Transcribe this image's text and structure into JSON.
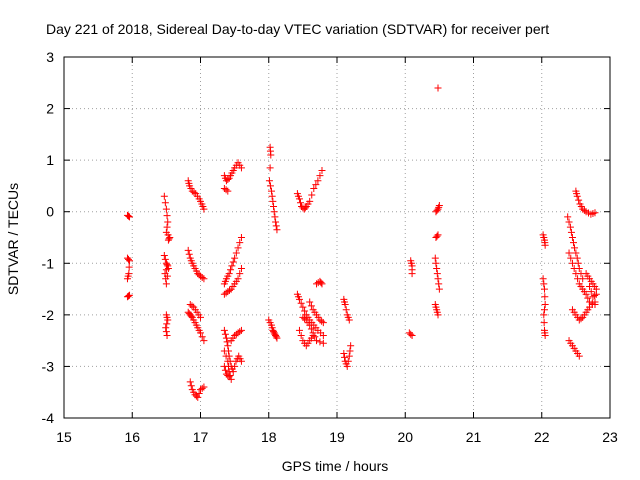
{
  "chart_data": {
    "type": "scatter",
    "title": "Day 221 of 2018, Sidereal Day-to-day VTEC variation (SDTVAR) for receiver pert",
    "xlabel": "GPS time / hours",
    "ylabel": "SDTVAR / TECUs",
    "xlim": [
      15,
      23
    ],
    "ylim": [
      -4,
      3
    ],
    "xticks": [
      "15",
      "16",
      "17",
      "18",
      "19",
      "20",
      "21",
      "22",
      "23"
    ],
    "yticks": [
      "3",
      "2",
      "1",
      "0",
      "-1",
      "-2",
      "-3",
      "-4"
    ],
    "grid": true,
    "marker": "+",
    "color": "#ff0000",
    "series": [
      {
        "name": "SDTVAR",
        "segments": [
          [
            [
              15.93,
              -0.07
            ],
            [
              15.96,
              -0.1
            ]
          ],
          [
            [
              15.93,
              -0.9
            ],
            [
              15.96,
              -0.95
            ],
            [
              15.95,
              -1.2
            ],
            [
              15.93,
              -1.3
            ]
          ],
          [
            [
              15.93,
              -1.65
            ],
            [
              15.96,
              -1.62
            ]
          ],
          [
            [
              16.47,
              0.3
            ],
            [
              16.5,
              0.05
            ],
            [
              16.52,
              -0.2
            ],
            [
              16.5,
              -0.4
            ],
            [
              16.55,
              -0.5
            ],
            [
              16.53,
              -0.55
            ]
          ],
          [
            [
              16.47,
              -0.85
            ],
            [
              16.5,
              -1.0
            ],
            [
              16.52,
              -1.05
            ],
            [
              16.48,
              -1.2
            ],
            [
              16.5,
              -1.4
            ],
            [
              16.53,
              -1.1
            ]
          ],
          [
            [
              16.5,
              -2.0
            ],
            [
              16.52,
              -2.1
            ],
            [
              16.49,
              -2.25
            ],
            [
              16.51,
              -2.4
            ]
          ],
          [
            [
              16.82,
              0.6
            ],
            [
              16.84,
              0.5
            ],
            [
              16.88,
              0.4
            ],
            [
              16.93,
              0.35
            ],
            [
              16.98,
              0.25
            ],
            [
              17.02,
              0.15
            ],
            [
              17.05,
              0.05
            ]
          ],
          [
            [
              16.82,
              -0.75
            ],
            [
              16.85,
              -0.9
            ],
            [
              16.88,
              -1.0
            ],
            [
              16.92,
              -1.1
            ],
            [
              16.96,
              -1.2
            ],
            [
              17.0,
              -1.25
            ],
            [
              17.05,
              -1.3
            ]
          ],
          [
            [
              16.82,
              -1.95
            ],
            [
              16.85,
              -2.0
            ],
            [
              16.88,
              -2.05
            ],
            [
              16.92,
              -2.15
            ],
            [
              16.96,
              -2.25
            ],
            [
              17.0,
              -2.35
            ],
            [
              17.05,
              -2.5
            ]
          ],
          [
            [
              16.85,
              -1.8
            ],
            [
              16.9,
              -1.85
            ],
            [
              16.95,
              -1.95
            ],
            [
              17.0,
              -2.05
            ]
          ],
          [
            [
              16.85,
              -3.3
            ],
            [
              16.88,
              -3.45
            ],
            [
              16.92,
              -3.55
            ],
            [
              16.96,
              -3.6
            ],
            [
              17.0,
              -3.45
            ],
            [
              17.05,
              -3.4
            ]
          ],
          [
            [
              17.35,
              0.7
            ],
            [
              17.38,
              0.6
            ],
            [
              17.42,
              0.65
            ],
            [
              17.46,
              0.75
            ],
            [
              17.5,
              0.85
            ],
            [
              17.55,
              0.95
            ],
            [
              17.6,
              0.85
            ]
          ],
          [
            [
              17.35,
              0.45
            ],
            [
              17.4,
              0.4
            ]
          ],
          [
            [
              17.35,
              -1.4
            ],
            [
              17.38,
              -1.3
            ],
            [
              17.42,
              -1.2
            ],
            [
              17.46,
              -1.05
            ],
            [
              17.5,
              -0.9
            ],
            [
              17.55,
              -0.7
            ],
            [
              17.6,
              -0.5
            ]
          ],
          [
            [
              17.35,
              -1.6
            ],
            [
              17.4,
              -1.55
            ],
            [
              17.45,
              -1.5
            ],
            [
              17.5,
              -1.4
            ],
            [
              17.55,
              -1.3
            ],
            [
              17.6,
              -1.1
            ]
          ],
          [
            [
              17.35,
              -2.3
            ],
            [
              17.38,
              -2.45
            ],
            [
              17.4,
              -2.6
            ],
            [
              17.42,
              -2.8
            ],
            [
              17.45,
              -3.0
            ],
            [
              17.48,
              -3.1
            ],
            [
              17.52,
              -2.9
            ],
            [
              17.56,
              -2.8
            ],
            [
              17.6,
              -2.9
            ]
          ],
          [
            [
              17.35,
              -2.7
            ],
            [
              17.4,
              -2.9
            ],
            [
              17.42,
              -3.1
            ],
            [
              17.45,
              -3.25
            ]
          ],
          [
            [
              17.45,
              -2.5
            ],
            [
              17.5,
              -2.4
            ],
            [
              17.55,
              -2.35
            ],
            [
              17.6,
              -2.3
            ]
          ],
          [
            [
              17.35,
              -3.0
            ],
            [
              17.38,
              -3.15
            ],
            [
              17.42,
              -3.2
            ]
          ],
          [
            [
              18.02,
              1.25
            ],
            [
              18.03,
              1.1
            ],
            [
              18.01,
              0.6
            ],
            [
              18.04,
              0.4
            ],
            [
              18.06,
              0.2
            ],
            [
              18.08,
              0.0
            ],
            [
              18.1,
              -0.2
            ],
            [
              18.12,
              -0.35
            ]
          ],
          [
            [
              18.0,
              -2.1
            ],
            [
              18.04,
              -2.2
            ],
            [
              18.06,
              -2.3
            ],
            [
              18.08,
              -2.35
            ],
            [
              18.1,
              -2.4
            ],
            [
              18.12,
              -2.45
            ]
          ],
          [
            [
              18.42,
              0.35
            ],
            [
              18.45,
              0.25
            ],
            [
              18.48,
              0.1
            ],
            [
              18.52,
              0.05
            ],
            [
              18.55,
              0.1
            ],
            [
              18.6,
              0.2
            ],
            [
              18.66,
              0.45
            ],
            [
              18.72,
              0.6
            ],
            [
              18.78,
              0.8
            ]
          ],
          [
            [
              18.42,
              -1.6
            ],
            [
              18.45,
              -1.7
            ],
            [
              18.5,
              -1.85
            ],
            [
              18.55,
              -2.0
            ],
            [
              18.6,
              -2.1
            ],
            [
              18.66,
              -2.2
            ],
            [
              18.72,
              -2.3
            ],
            [
              18.8,
              -2.4
            ]
          ],
          [
            [
              18.45,
              -2.3
            ],
            [
              18.5,
              -2.5
            ],
            [
              18.55,
              -2.6
            ],
            [
              18.6,
              -2.5
            ],
            [
              18.65,
              -2.4
            ]
          ],
          [
            [
              18.6,
              -1.75
            ],
            [
              18.65,
              -1.9
            ],
            [
              18.7,
              -2.0
            ],
            [
              18.75,
              -2.1
            ],
            [
              18.8,
              -2.15
            ]
          ],
          [
            [
              18.7,
              -1.4
            ],
            [
              18.75,
              -1.35
            ],
            [
              18.78,
              -1.4
            ]
          ],
          [
            [
              18.5,
              -2.05
            ],
            [
              18.55,
              -2.1
            ],
            [
              18.6,
              -2.2
            ],
            [
              18.65,
              -2.35
            ],
            [
              18.7,
              -2.5
            ],
            [
              18.8,
              -2.55
            ]
          ],
          [
            [
              19.1,
              -1.7
            ],
            [
              19.12,
              -1.8
            ],
            [
              19.15,
              -2.0
            ],
            [
              19.18,
              -2.1
            ]
          ],
          [
            [
              19.1,
              -2.75
            ],
            [
              19.12,
              -2.9
            ],
            [
              19.15,
              -3.0
            ],
            [
              19.18,
              -2.8
            ],
            [
              19.2,
              -2.6
            ]
          ],
          [
            [
              20.08,
              -0.95
            ],
            [
              20.1,
              -1.05
            ],
            [
              20.1,
              -1.2
            ]
          ],
          [
            [
              20.06,
              -2.35
            ],
            [
              20.1,
              -2.4
            ]
          ],
          [
            [
              20.48,
              2.4
            ]
          ],
          [
            [
              20.45,
              0.0
            ],
            [
              20.48,
              0.05
            ],
            [
              20.5,
              0.12
            ]
          ],
          [
            [
              20.45,
              -0.5
            ],
            [
              20.48,
              -0.45
            ]
          ],
          [
            [
              20.44,
              -0.9
            ],
            [
              20.46,
              -1.1
            ],
            [
              20.48,
              -1.3
            ],
            [
              20.5,
              -1.5
            ]
          ],
          [
            [
              20.44,
              -1.8
            ],
            [
              20.46,
              -1.9
            ],
            [
              20.48,
              -2.0
            ]
          ],
          [
            [
              22.02,
              -0.45
            ],
            [
              22.04,
              -0.55
            ],
            [
              22.05,
              -0.65
            ]
          ],
          [
            [
              22.02,
              -1.3
            ],
            [
              22.04,
              -1.5
            ],
            [
              22.05,
              -1.8
            ],
            [
              22.03,
              -2.0
            ],
            [
              22.04,
              -2.3
            ],
            [
              22.05,
              -2.4
            ]
          ],
          [
            [
              22.38,
              -0.1
            ],
            [
              22.42,
              -0.3
            ],
            [
              22.45,
              -0.5
            ],
            [
              22.48,
              -0.7
            ],
            [
              22.52,
              -0.9
            ],
            [
              22.55,
              -1.1
            ],
            [
              22.6,
              -1.3
            ]
          ],
          [
            [
              22.5,
              0.4
            ],
            [
              22.52,
              0.3
            ],
            [
              22.56,
              0.15
            ],
            [
              22.6,
              0.05
            ],
            [
              22.65,
              0.0
            ],
            [
              22.72,
              -0.05
            ],
            [
              22.78,
              -0.02
            ]
          ],
          [
            [
              22.4,
              -0.8
            ],
            [
              22.45,
              -1.0
            ],
            [
              22.5,
              -1.2
            ],
            [
              22.55,
              -1.4
            ],
            [
              22.6,
              -1.5
            ],
            [
              22.65,
              -1.6
            ],
            [
              22.7,
              -1.75
            ],
            [
              22.78,
              -1.8
            ]
          ],
          [
            [
              22.45,
              -1.9
            ],
            [
              22.5,
              -2.0
            ],
            [
              22.55,
              -2.1
            ],
            [
              22.6,
              -2.05
            ],
            [
              22.65,
              -1.95
            ],
            [
              22.7,
              -1.85
            ],
            [
              22.78,
              -1.75
            ]
          ],
          [
            [
              22.4,
              -2.5
            ],
            [
              22.45,
              -2.6
            ],
            [
              22.5,
              -2.7
            ],
            [
              22.55,
              -2.8
            ]
          ],
          [
            [
              22.65,
              -1.2
            ],
            [
              22.7,
              -1.3
            ],
            [
              22.75,
              -1.4
            ],
            [
              22.8,
              -1.5
            ]
          ],
          [
            [
              22.7,
              -1.45
            ],
            [
              22.75,
              -1.65
            ],
            [
              22.8,
              -1.6
            ]
          ]
        ]
      }
    ]
  }
}
